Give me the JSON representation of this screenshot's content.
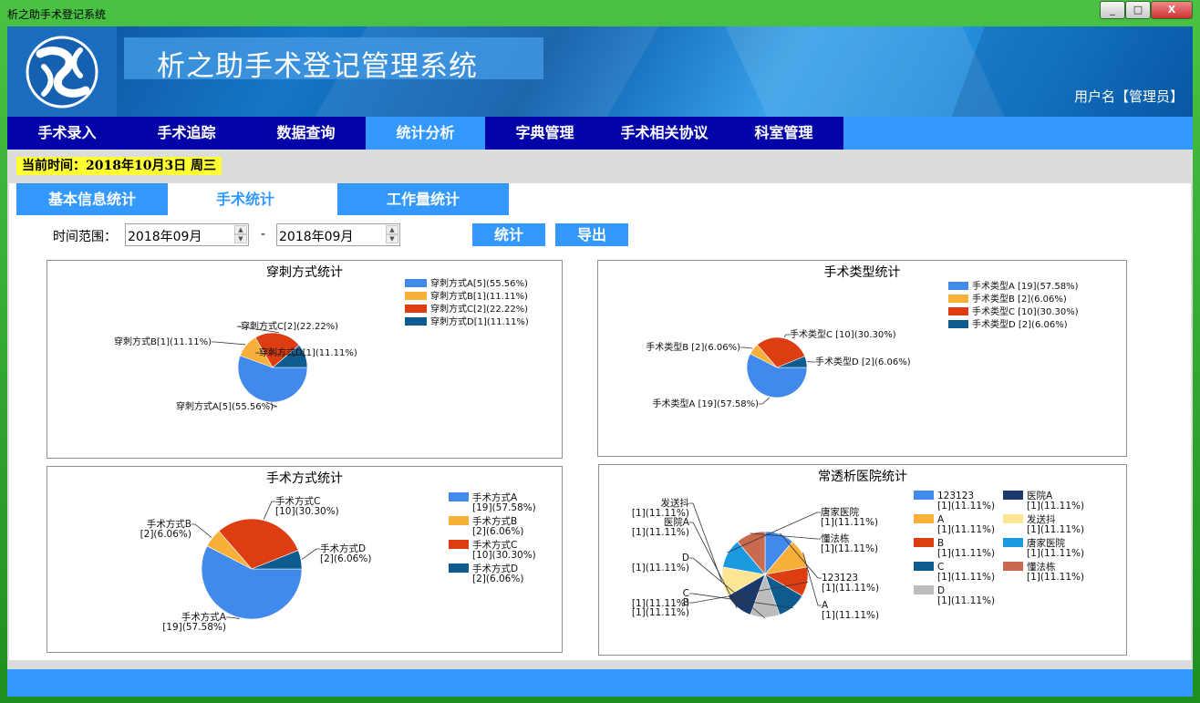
{
  "window": {
    "title": "析之助手术登记系统",
    "min": "_",
    "max": "□",
    "close": "X"
  },
  "header": {
    "title": "析之助手术登记管理系统",
    "user": "用户名【管理员】"
  },
  "nav": [
    "手术录入",
    "手术追踪",
    "数据查询",
    "统计分析",
    "字典管理",
    "手术相关协议",
    "科室管理"
  ],
  "current_time": "当前时间：2018年10月3日 周三",
  "subtabs": [
    "基本信息统计",
    "手术统计",
    "工作量统计"
  ],
  "filter": {
    "label": "时间范围：",
    "from": "2018年09月",
    "to": "2018年09月",
    "dash": "-",
    "stat_button": "统计",
    "export_button": "导出"
  },
  "colors": {
    "nav_bg": "#0303a8",
    "accent": "#3399ff",
    "time_bg": "#ffff33"
  },
  "chart_data": [
    {
      "type": "pie",
      "title": "穿刺方式统计",
      "labels": [
        "穿刺方式A",
        "穿刺方式B",
        "穿刺方式C",
        "穿刺方式D"
      ],
      "values": [
        5,
        1,
        2,
        1
      ],
      "legend": [
        "穿刺方式A[5](55.56%)",
        "穿刺方式B[1](11.11%)",
        "穿刺方式C[2](22.22%)",
        "穿刺方式D[1](11.11%)"
      ],
      "callouts": [
        "穿刺方式A[5](55.56%)",
        "穿刺方式B[1](11.11%)",
        "穿刺方式C[2](22.22%)",
        "穿刺方式D[1](11.11%)"
      ],
      "colors": [
        "#4189ea",
        "#f9b03b",
        "#dd3d10",
        "#0e5b8f"
      ]
    },
    {
      "type": "pie",
      "title": "手术类型统计",
      "labels": [
        "手术类型A",
        "手术类型B",
        "手术类型C",
        "手术类型D"
      ],
      "values": [
        19,
        2,
        10,
        2
      ],
      "legend": [
        "手术类型A [19](57.58%)",
        "手术类型B [2](6.06%)",
        "手术类型C [10](30.30%)",
        "手术类型D [2](6.06%)"
      ],
      "callouts": [
        "手术类型A [19](57.58%)",
        "手术类型B [2](6.06%)",
        "手术类型C [10](30.30%)",
        "手术类型D [2](6.06%)"
      ],
      "colors": [
        "#4189ea",
        "#f9b03b",
        "#dd3d10",
        "#0e5b8f"
      ]
    },
    {
      "type": "pie",
      "title": "手术方式统计",
      "labels": [
        "手术方式A",
        "手术方式B",
        "手术方式C",
        "手术方式D"
      ],
      "values": [
        19,
        2,
        10,
        2
      ],
      "legend": [
        [
          "手术方式A",
          "[19](57.58%)"
        ],
        [
          "手术方式B",
          "[2](6.06%)"
        ],
        [
          "手术方式C",
          "[10](30.30%)"
        ],
        [
          "手术方式D",
          "[2](6.06%)"
        ]
      ],
      "callouts": [
        [
          "手术方式A",
          "[19](57.58%)"
        ],
        [
          "手术方式B",
          "[2](6.06%)"
        ],
        [
          "手术方式C",
          "[10](30.30%)"
        ],
        [
          "手术方式D",
          "[2](6.06%)"
        ]
      ],
      "colors": [
        "#4189ea",
        "#f9b03b",
        "#dd3d10",
        "#0e5b8f"
      ]
    },
    {
      "type": "pie",
      "title": "常透析医院统计",
      "labels": [
        "123123",
        "A",
        "B",
        "C",
        "D",
        "医院A",
        "发送抖",
        "唐家医院",
        "懂法栋"
      ],
      "values": [
        1,
        1,
        1,
        1,
        1,
        1,
        1,
        1,
        1
      ],
      "legend": [
        [
          "123123",
          "[1](11.11%)"
        ],
        [
          "A",
          "[1](11.11%)"
        ],
        [
          "B",
          "[1](11.11%)"
        ],
        [
          "C",
          "[1](11.11%)"
        ],
        [
          "D",
          "[1](11.11%)"
        ],
        [
          "医院A",
          "[1](11.11%)"
        ],
        [
          "发送抖",
          "[1](11.11%)"
        ],
        [
          "唐家医院",
          "[1](11.11%)"
        ],
        [
          "懂法栋",
          "[1](11.11%)"
        ]
      ],
      "callouts": [
        [
          "123123",
          "[1](11.11%)"
        ],
        [
          "A",
          "[1](11.11%)"
        ],
        [
          "B",
          "[1](11.11%)"
        ],
        [
          "C",
          "[1](11.11%)"
        ],
        [
          "D",
          "[1](11.11%)"
        ],
        [
          "医院A",
          "[1](11.11%)"
        ],
        [
          "发送抖",
          "[1](11.11%)"
        ],
        [
          "唐家医院",
          "[1](11.11%)"
        ],
        [
          "懂法栋",
          "[1](11.11%)"
        ]
      ],
      "colors": [
        "#4189ea",
        "#f9b03b",
        "#dd3d10",
        "#0e5b8f",
        "#bcbcbc",
        "#1b3a6b",
        "#fde594",
        "#1c9ae0",
        "#c96a4f"
      ]
    }
  ]
}
